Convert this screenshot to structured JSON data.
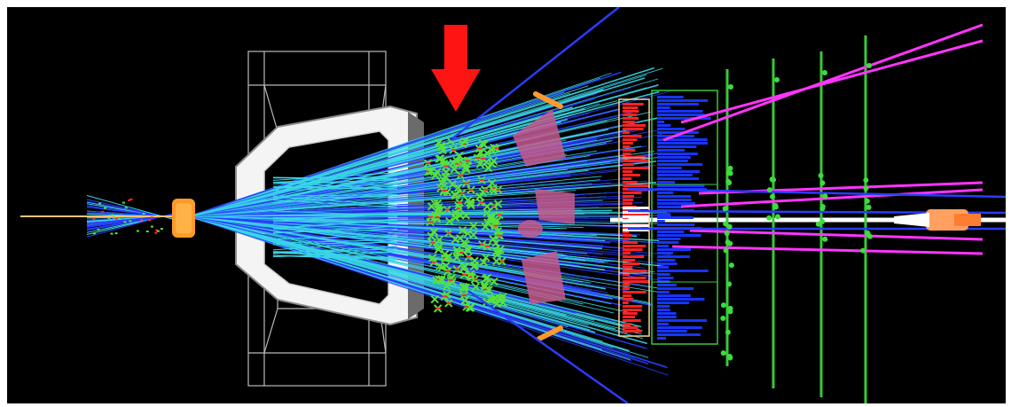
{
  "image": {
    "kind": "particle-collision-event-display",
    "background_color": "#000000",
    "frame_color": "#ffffff",
    "colors": {
      "beam": "#f2c57a",
      "vertex_blob": "#ff9a2a",
      "magnet_fill": "#f4f4f4",
      "magnet_edge": "#8a8a8a",
      "wire_frame": "#b9b9b9",
      "track_cyan": "#39d6e6",
      "track_blue": "#2a3cff",
      "track_magenta": "#ff35ff",
      "hit_green": "#56e23a",
      "hit_red": "#ff2a2a",
      "hodoscope_red": "#ff2323",
      "hodoscope_blue": "#1636ff",
      "detector_plane_green": "#39c83a",
      "pink_patch": "#c45a8c",
      "arrow": "#ff1414",
      "end_blob": "#ffa060"
    },
    "icons": [
      "red-down-arrow-marker"
    ]
  }
}
